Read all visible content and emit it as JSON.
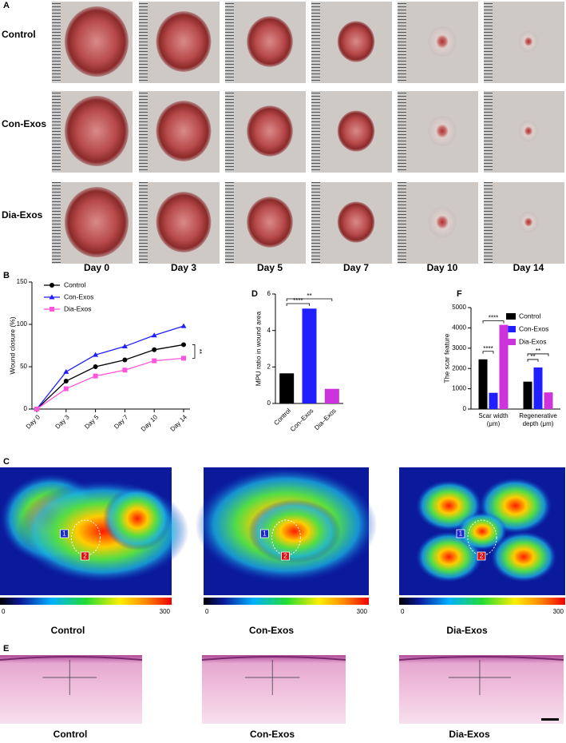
{
  "figure": {
    "photo_panel": {
      "label": "A",
      "rows": [
        "Control",
        "Con-Exos",
        "Dia-Exos"
      ],
      "columns": [
        "Day 0",
        "Day 3",
        "Day 5",
        "Day 7",
        "Day 10",
        "Day 14"
      ]
    },
    "perfusion_panel": {
      "label": "C",
      "groups": [
        "Control",
        "Con-Exos",
        "Dia-Exos"
      ],
      "scale_min": "0",
      "scale_max": "300",
      "roi_labels": [
        "1",
        "2"
      ]
    },
    "histology_panel": {
      "label": "E",
      "groups": [
        "Control",
        "Con-Exos",
        "Dia-Exos"
      ]
    }
  },
  "chart_data": [
    {
      "panel_label": "B",
      "type": "line",
      "ylabel": "Wound closure (%)",
      "categories": [
        "Day 0",
        "Day 3",
        "Day 5",
        "Day 7",
        "Day 10",
        "Day 14"
      ],
      "series": [
        {
          "name": "Control",
          "color": "#000000",
          "marker": "circle",
          "values": [
            0,
            33,
            50,
            58,
            70,
            76
          ]
        },
        {
          "name": "Con-Exos",
          "color": "#1f1fff",
          "marker": "triangle",
          "values": [
            0,
            44,
            64,
            74,
            87,
            98
          ]
        },
        {
          "name": "Dia-Exos",
          "color": "#ff55dd",
          "marker": "square",
          "values": [
            0,
            24,
            39,
            46,
            57,
            60
          ]
        }
      ],
      "ylim": [
        0,
        150
      ],
      "yticks": [
        0,
        50,
        100,
        150
      ],
      "annotations": [
        "**"
      ]
    },
    {
      "panel_label": "D",
      "type": "bar",
      "ylabel": "MPU ratio in wound area",
      "categories": [
        "Control",
        "Con–Exos",
        "Dia–Exos"
      ],
      "values": [
        1.65,
        5.2,
        0.8
      ],
      "colors": [
        "#000000",
        "#1f1fff",
        "#cc33dd"
      ],
      "ylim": [
        0,
        6
      ],
      "yticks": [
        0,
        2,
        4,
        6
      ],
      "annotations": [
        "****",
        "**"
      ]
    },
    {
      "panel_label": "F",
      "type": "grouped_bar",
      "ylabel": "The scar feature",
      "categories": [
        [
          "Scar width",
          "(μm)"
        ],
        [
          "Regenerative",
          "depth (μm)"
        ]
      ],
      "series": [
        {
          "name": "Control",
          "color": "#000000",
          "values": [
            2450,
            1350
          ]
        },
        {
          "name": "Con-Exos",
          "color": "#1f1fff",
          "values": [
            800,
            2050
          ]
        },
        {
          "name": "Dia-Exos",
          "color": "#cc33dd",
          "values": [
            4150,
            820
          ]
        }
      ],
      "ylim": [
        0,
        5000
      ],
      "yticks": [
        0,
        1000,
        2000,
        3000,
        4000,
        5000
      ],
      "legend": "upper right",
      "annotations": [
        "****",
        "****",
        "**",
        "**"
      ]
    }
  ]
}
